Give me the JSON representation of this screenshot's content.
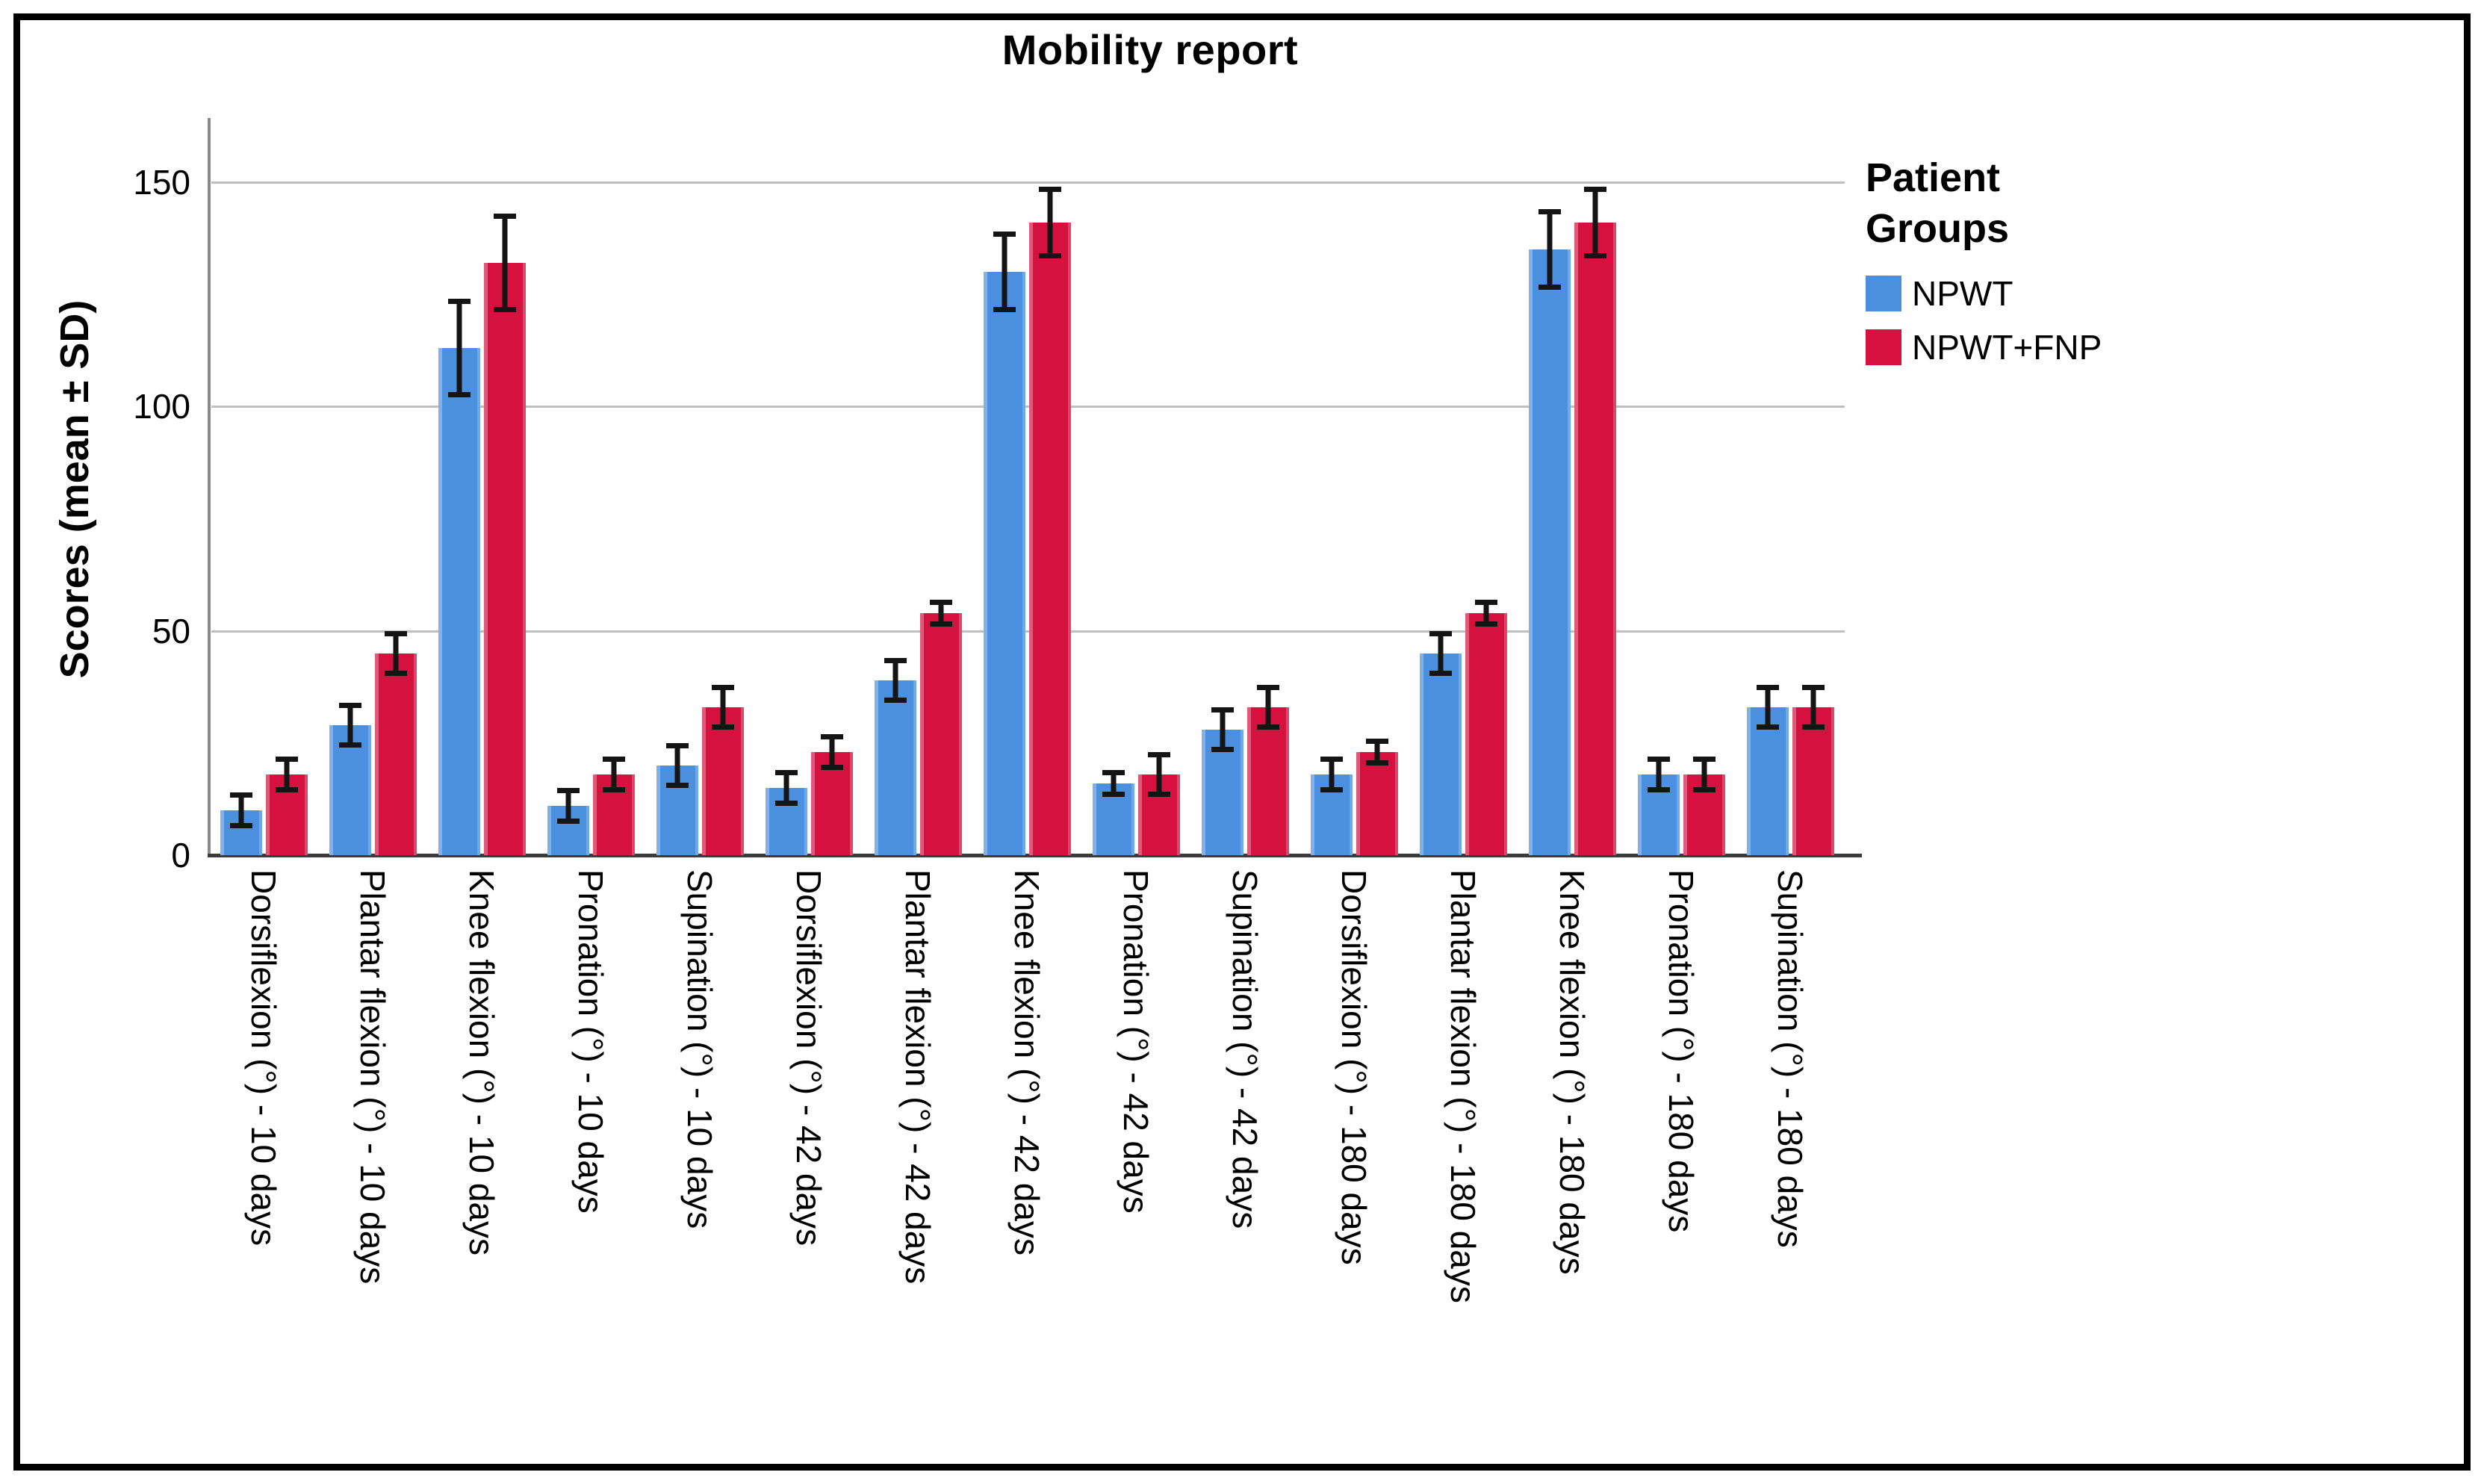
{
  "page": {
    "background_color": "#ffffff",
    "frame_color": "#000000"
  },
  "chart_data": {
    "type": "bar",
    "title": "Mobility report",
    "ylabel": "Scores (mean ± SD)",
    "xlabel": "",
    "ylim": [
      0,
      164
    ],
    "yticks": [
      0,
      50,
      100,
      150
    ],
    "grid": "horizontal gridlines at 50, 100, 150",
    "error_bars": "± SD, black with caps",
    "legend": {
      "title": "Patient Groups",
      "position": "right-top"
    },
    "categories": [
      "Dorsiflexion (°) - 10 days",
      "Plantar flexion (°) - 10 days",
      "Knee flexion (°) - 10 days",
      "Pronation (°) - 10 days",
      "Supination (°) - 10 days",
      "Dorsiflexion (°) - 42 days",
      "Plantar flexion (°) - 42 days",
      "Knee flexion (°) - 42 days",
      "Pronation (°) - 42 days",
      "Supination (°) - 42 days",
      "Dorsiflexion (°) - 180 days",
      "Plantar flexion (°) - 180 days",
      "Knee flexion (°) - 180 days",
      "Pronation (°) - 180 days",
      "Supination (°) - 180 days"
    ],
    "series": [
      {
        "name": "NPWT",
        "color": "#4B90DF",
        "means": [
          10,
          29,
          113,
          11,
          20,
          15,
          39,
          130,
          16,
          28,
          18,
          45,
          135,
          18,
          33
        ],
        "sds": [
          4,
          5,
          11,
          4,
          5,
          4,
          5,
          9,
          3,
          5,
          4,
          5,
          9,
          4,
          5
        ]
      },
      {
        "name": "NPWT+FNP",
        "color": "#D6113F",
        "means": [
          18,
          45,
          132,
          18,
          33,
          23,
          54,
          141,
          18,
          33,
          23,
          54,
          141,
          18,
          33
        ],
        "sds": [
          4,
          5,
          11,
          4,
          5,
          4,
          3,
          8,
          5,
          5,
          3,
          3,
          8,
          4,
          5
        ]
      }
    ]
  }
}
